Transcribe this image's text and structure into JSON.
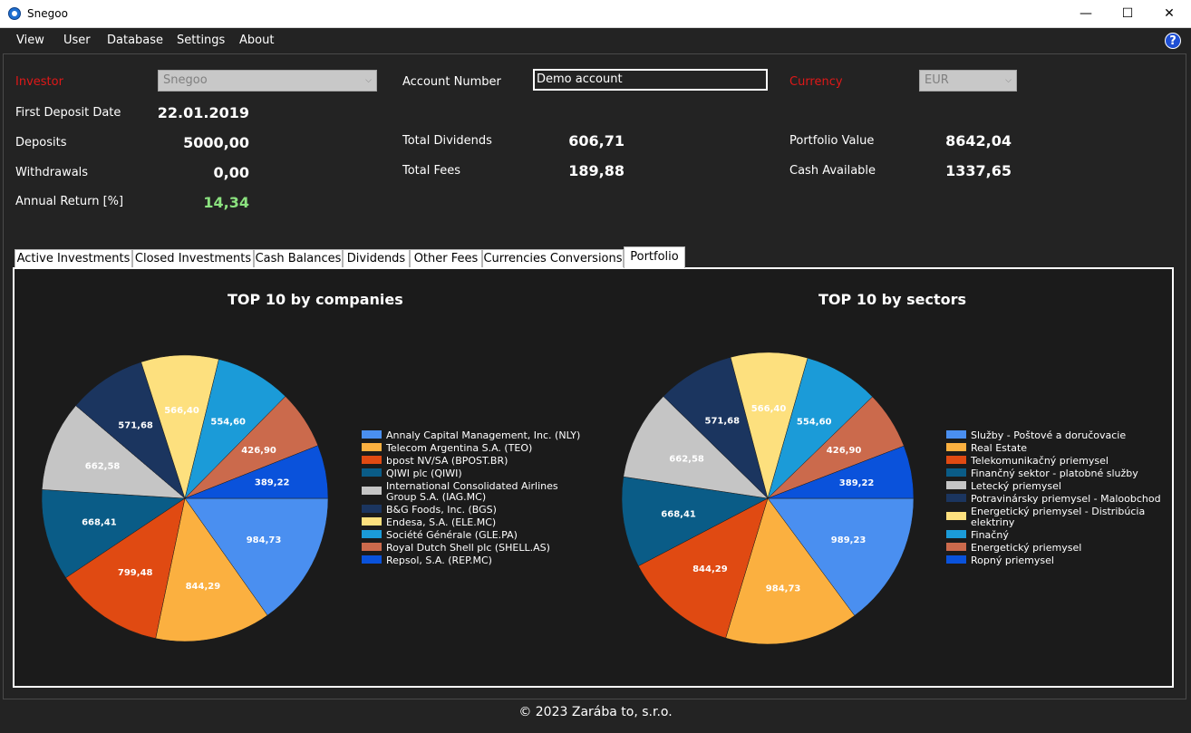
{
  "window": {
    "title": "Snegoo",
    "minimize": "—",
    "maximize": "☐",
    "close": "✕"
  },
  "menu": {
    "items": [
      "View",
      "User",
      "Database",
      "Settings",
      "About"
    ],
    "help": "?"
  },
  "summary": {
    "investor_label": "Investor",
    "investor_value": "Snegoo",
    "account_label": "Account Number",
    "account_value": "Demo account",
    "currency_label": "Currency",
    "currency_value": "EUR",
    "first_deposit_label": "First Deposit Date",
    "first_deposit_value": "22.01.2019",
    "deposits_label": "Deposits",
    "deposits_value": "5000,00",
    "withdrawals_label": "Withdrawals",
    "withdrawals_value": "0,00",
    "annual_return_label": "Annual Return [%]",
    "annual_return_value": "14,34",
    "total_dividends_label": "Total Dividends",
    "total_dividends_value": "606,71",
    "total_fees_label": "Total Fees",
    "total_fees_value": "189,88",
    "portfolio_value_label": "Portfolio Value",
    "portfolio_value_value": "8642,04",
    "cash_available_label": "Cash Available",
    "cash_available_value": "1337,65"
  },
  "tabs": [
    "Active Investments",
    "Closed Investments",
    "Cash Balances",
    "Dividends",
    "Other Fees",
    "Currencies Conversions",
    "Portfolio"
  ],
  "active_tab": "Portfolio",
  "colors": [
    "#4a8ff0",
    "#fbb040",
    "#e04a12",
    "#0a5c87",
    "#c5c5c5",
    "#1b355f",
    "#fde07e",
    "#1b9bd8",
    "#cb6a4c",
    "#0a52db"
  ],
  "chart_data": [
    {
      "type": "pie",
      "title": "TOP 10 by companies",
      "labels": [
        "Annaly Capital Management, Inc. (NLY)",
        "Telecom Argentina S.A. (TEO)",
        "bpost NV/SA (BPOST.BR)",
        "QIWI plc (QIWI)",
        "International Consolidated Airlines Group S.A. (IAG.MC)",
        "B&G Foods, Inc. (BGS)",
        "Endesa, S.A. (ELE.MC)",
        "Société Générale (GLE.PA)",
        "Royal Dutch Shell plc (SHELL.AS)",
        "Repsol, S.A. (REP.MC)"
      ],
      "legend_lines": [
        [
          "Annaly Capital Management, Inc. (NLY)"
        ],
        [
          "Telecom Argentina S.A. (TEO)"
        ],
        [
          "bpost NV/SA (BPOST.BR)"
        ],
        [
          "QIWI plc (QIWI)"
        ],
        [
          "International Consolidated Airlines",
          "Group S.A. (IAG.MC)"
        ],
        [
          "B&G Foods, Inc. (BGS)"
        ],
        [
          "Endesa, S.A. (ELE.MC)"
        ],
        [
          "Société Générale (GLE.PA)"
        ],
        [
          "Royal Dutch Shell plc (SHELL.AS)"
        ],
        [
          "Repsol, S.A. (REP.MC)"
        ]
      ],
      "values": [
        984.73,
        844.29,
        799.48,
        668.41,
        662.58,
        571.68,
        566.4,
        554.6,
        426.9,
        389.22
      ],
      "value_labels": [
        "984,73",
        "844,29",
        "799,48",
        "668,41",
        "662,58",
        "571,68",
        "566,40",
        "554,60",
        "426,90",
        "389,22"
      ],
      "legend": "right"
    },
    {
      "type": "pie",
      "title": "TOP 10 by sectors",
      "labels": [
        "Služby - Poštové a doručovacie",
        "Real Estate",
        "Telekomunikačný priemysel",
        "Finančný sektor - platobné služby",
        "Letecký priemysel",
        "Potravinársky priemysel - Maloobchod",
        "Energetický priemysel - Distribúcia elektriny",
        "Finačný",
        "Energetický priemysel",
        "Ropný priemysel"
      ],
      "legend_lines": [
        [
          "Služby - Poštové a doručovacie"
        ],
        [
          "Real Estate"
        ],
        [
          "Telekomunikačný priemysel"
        ],
        [
          "Finančný sektor - platobné služby"
        ],
        [
          "Letecký priemysel"
        ],
        [
          "Potravinársky priemysel - Maloobchod"
        ],
        [
          "Energetický priemysel - Distribúcia",
          "elektriny"
        ],
        [
          "Finačný"
        ],
        [
          "Energetický priemysel"
        ],
        [
          "Ropný priemysel"
        ]
      ],
      "values": [
        989.23,
        984.73,
        844.29,
        668.41,
        662.58,
        571.68,
        566.4,
        554.6,
        426.9,
        389.22
      ],
      "value_labels": [
        "989,23",
        "984,73",
        "844,29",
        "668,41",
        "662,58",
        "571,68",
        "566,40",
        "554,60",
        "426,90",
        "389,22"
      ],
      "legend": "right"
    }
  ],
  "footer": "© 2023 Zarába to, s.r.o."
}
